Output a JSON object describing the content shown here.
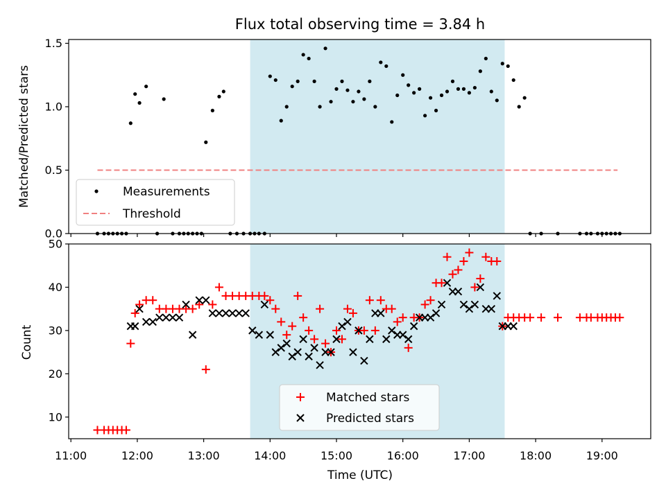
{
  "figure": {
    "title": "Flux total observing time = 3.84 h",
    "xlabel": "Time (UTC)",
    "span_color": "#add8e6",
    "x_ticks": [
      "11:00",
      "12:00",
      "13:00",
      "14:00",
      "15:00",
      "16:00",
      "17:00",
      "18:00",
      "19:00"
    ]
  },
  "chart_data": [
    {
      "type": "scatter",
      "ylabel": "Matched/Predicted stars",
      "ylim": [
        0,
        1.53
      ],
      "xlim": [
        "10:58",
        "19:44"
      ],
      "y_ticks": [
        "0.0",
        "0.5",
        "1.0",
        "1.5"
      ],
      "highlight_span": [
        "13:42",
        "17:32"
      ],
      "legend_placement": "lower-left",
      "legend": [
        {
          "label": "Measurements",
          "marker": "dot",
          "color": "#000000"
        },
        {
          "label": "Threshold",
          "marker": "dashed-line",
          "color": "#f08080"
        }
      ],
      "threshold": {
        "value": 0.5,
        "x_range": [
          "11:24",
          "19:14"
        ],
        "color": "#f08080"
      },
      "series": [
        {
          "name": "Measurements",
          "color": "#000000",
          "x": [
            "11:24",
            "11:30",
            "11:34",
            "11:38",
            "11:42",
            "11:46",
            "11:50",
            "11:54",
            "11:58",
            "12:02",
            "12:08",
            "12:18",
            "12:24",
            "12:32",
            "12:38",
            "12:42",
            "12:46",
            "12:50",
            "12:54",
            "12:58",
            "13:02",
            "13:08",
            "13:14",
            "13:18",
            "13:24",
            "13:30",
            "13:36",
            "13:42",
            "13:46",
            "13:50",
            "13:55",
            "14:00",
            "14:05",
            "14:10",
            "14:15",
            "14:20",
            "14:25",
            "14:30",
            "14:35",
            "14:40",
            "14:45",
            "14:50",
            "14:55",
            "15:00",
            "15:05",
            "15:10",
            "15:15",
            "15:20",
            "15:25",
            "15:30",
            "15:35",
            "15:40",
            "15:45",
            "15:50",
            "15:55",
            "16:00",
            "16:05",
            "16:10",
            "16:15",
            "16:20",
            "16:25",
            "16:30",
            "16:35",
            "16:40",
            "16:45",
            "16:50",
            "16:55",
            "17:00",
            "17:05",
            "17:10",
            "17:15",
            "17:20",
            "17:25",
            "17:30",
            "17:35",
            "17:40",
            "17:45",
            "17:50",
            "17:55",
            "18:05",
            "18:20",
            "18:40",
            "18:46",
            "18:50",
            "18:56",
            "19:00",
            "19:04",
            "19:08",
            "19:12",
            "19:16"
          ],
          "y": [
            0,
            0,
            0,
            0,
            0,
            0,
            0,
            0.87,
            1.1,
            1.03,
            1.16,
            0,
            1.06,
            0,
            0,
            0,
            0,
            0,
            0,
            0,
            0.72,
            0.97,
            1.08,
            1.12,
            0,
            0,
            0,
            0,
            0,
            0,
            0,
            1.24,
            1.21,
            0.89,
            1.0,
            1.16,
            1.2,
            1.41,
            1.38,
            1.2,
            1.0,
            1.46,
            1.04,
            1.14,
            1.2,
            1.13,
            1.04,
            1.12,
            1.06,
            1.2,
            1.0,
            1.35,
            1.32,
            0.88,
            1.09,
            1.25,
            1.17,
            1.11,
            1.14,
            0.93,
            1.07,
            0.97,
            1.09,
            1.12,
            1.2,
            1.14,
            1.14,
            1.11,
            1.15,
            1.28,
            1.38,
            1.12,
            1.05,
            1.34,
            1.32,
            1.21,
            1.0,
            1.07,
            0,
            0,
            0,
            0,
            0,
            0,
            0,
            0,
            0,
            0,
            0,
            0
          ]
        }
      ]
    },
    {
      "type": "scatter",
      "ylabel": "Count",
      "ylim": [
        5,
        50
      ],
      "xlim": [
        "10:58",
        "19:44"
      ],
      "y_ticks": [
        "10",
        "20",
        "30",
        "40",
        "50"
      ],
      "highlight_span": [
        "13:42",
        "17:32"
      ],
      "legend_placement": "lower-center",
      "legend": [
        {
          "label": "Matched stars",
          "marker": "plus",
          "color": "#ff0000"
        },
        {
          "label": "Predicted stars",
          "marker": "x",
          "color": "#000000"
        }
      ],
      "series": [
        {
          "name": "Matched stars",
          "color": "#ff0000",
          "x": [
            "11:24",
            "11:30",
            "11:34",
            "11:38",
            "11:42",
            "11:46",
            "11:50",
            "11:54",
            "11:58",
            "12:02",
            "12:08",
            "12:14",
            "12:20",
            "12:26",
            "12:32",
            "12:38",
            "12:44",
            "12:50",
            "12:56",
            "13:02",
            "13:08",
            "13:14",
            "13:20",
            "13:26",
            "13:32",
            "13:38",
            "13:44",
            "13:50",
            "13:55",
            "14:00",
            "14:05",
            "14:10",
            "14:15",
            "14:20",
            "14:25",
            "14:30",
            "14:35",
            "14:40",
            "14:45",
            "14:50",
            "14:55",
            "15:00",
            "15:05",
            "15:10",
            "15:15",
            "15:20",
            "15:25",
            "15:30",
            "15:35",
            "15:40",
            "15:45",
            "15:50",
            "15:55",
            "16:00",
            "16:05",
            "16:10",
            "16:15",
            "16:20",
            "16:25",
            "16:30",
            "16:35",
            "16:40",
            "16:45",
            "16:50",
            "16:55",
            "17:00",
            "17:05",
            "17:10",
            "17:15",
            "17:20",
            "17:25",
            "17:30",
            "17:35",
            "17:40",
            "17:45",
            "17:50",
            "17:55",
            "18:05",
            "18:20",
            "18:40",
            "18:46",
            "18:50",
            "18:56",
            "19:00",
            "19:04",
            "19:08",
            "19:12",
            "19:16"
          ],
          "y": [
            7,
            7,
            7,
            7,
            7,
            7,
            7,
            27,
            34,
            36,
            37,
            37,
            35,
            35,
            35,
            35,
            35,
            35,
            36,
            21,
            36,
            40,
            38,
            38,
            38,
            38,
            38,
            38,
            38,
            37,
            35,
            32,
            29,
            31,
            38,
            33,
            30,
            28,
            35,
            27,
            25,
            30,
            28,
            35,
            34,
            30,
            30,
            37,
            30,
            37,
            35,
            35,
            32,
            33,
            26,
            33,
            33,
            36,
            37,
            41,
            41,
            47,
            43,
            44,
            46,
            48,
            40,
            42,
            47,
            46,
            46,
            31,
            33,
            33,
            33,
            33,
            33,
            33,
            33,
            33,
            33,
            33,
            33,
            33,
            33,
            33,
            33,
            33
          ]
        },
        {
          "name": "Predicted stars",
          "color": "#000000",
          "x": [
            "11:54",
            "11:58",
            "12:02",
            "12:08",
            "12:14",
            "12:20",
            "12:26",
            "12:32",
            "12:38",
            "12:44",
            "12:50",
            "12:56",
            "13:02",
            "13:08",
            "13:14",
            "13:20",
            "13:26",
            "13:32",
            "13:38",
            "13:44",
            "13:50",
            "13:55",
            "14:00",
            "14:05",
            "14:10",
            "14:15",
            "14:20",
            "14:25",
            "14:30",
            "14:35",
            "14:40",
            "14:45",
            "14:50",
            "14:55",
            "15:00",
            "15:05",
            "15:10",
            "15:15",
            "15:20",
            "15:25",
            "15:30",
            "15:35",
            "15:40",
            "15:45",
            "15:50",
            "15:55",
            "16:00",
            "16:05",
            "16:10",
            "16:15",
            "16:20",
            "16:25",
            "16:30",
            "16:35",
            "16:40",
            "16:45",
            "16:50",
            "16:55",
            "17:00",
            "17:05",
            "17:10",
            "17:15",
            "17:20",
            "17:25",
            "17:30",
            "17:35",
            "17:40"
          ],
          "y": [
            31,
            31,
            35,
            32,
            32,
            33,
            33,
            33,
            33,
            36,
            29,
            37,
            37,
            34,
            34,
            34,
            34,
            34,
            34,
            30,
            29,
            36,
            29,
            25,
            26,
            27,
            24,
            25,
            28,
            24,
            26,
            22,
            25,
            25,
            28,
            31,
            32,
            25,
            30,
            23,
            28,
            34,
            34,
            28,
            30,
            29,
            29,
            28,
            31,
            33,
            33,
            33,
            34,
            36,
            41,
            39,
            39,
            36,
            35,
            36,
            40,
            35,
            35,
            38,
            31,
            31,
            31
          ]
        }
      ]
    }
  ]
}
